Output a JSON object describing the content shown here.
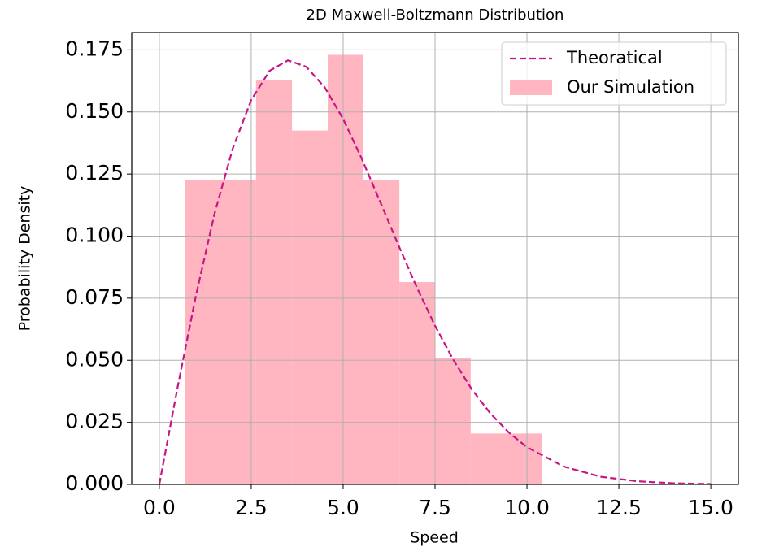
{
  "chart_data": {
    "type": "histogram",
    "title": "2D Maxwell-Boltzmann Distribution",
    "xlabel": "Speed",
    "ylabel": "Probability Density",
    "name": "Our Simulation",
    "color": "#ffb6c1",
    "bins": [
      0.69,
      1.66,
      2.63,
      3.61,
      4.58,
      5.55,
      6.53,
      7.5,
      8.47,
      9.45,
      10.42
    ],
    "values": [
      0.1225,
      0.1225,
      0.163,
      0.1425,
      0.173,
      0.1225,
      0.0815,
      0.051,
      0.0205,
      0.0205
    ],
    "line": {
      "type": "line",
      "name": "Theoratical",
      "color": "#c71585",
      "dashed": true,
      "x": [
        0,
        0.5,
        1,
        1.5,
        2,
        2.5,
        3,
        3.5,
        4,
        4.5,
        5,
        5.5,
        6,
        6.5,
        7,
        7.5,
        8,
        8.5,
        9,
        9.5,
        10,
        11,
        12,
        13,
        14,
        15
      ],
      "values": [
        0,
        0.0393,
        0.0763,
        0.1089,
        0.1354,
        0.1548,
        0.1666,
        0.1708,
        0.1682,
        0.1599,
        0.1472,
        0.1314,
        0.1141,
        0.0965,
        0.0795,
        0.0639,
        0.0501,
        0.0383,
        0.0287,
        0.021,
        0.015,
        0.0072,
        0.0031,
        0.00126,
        0.00047,
        0.00016
      ]
    },
    "xlim": [
      -0.75,
      15.75
    ],
    "ylim": [
      0,
      0.182
    ],
    "xticks": [
      {
        "value": 0,
        "label": "0.0"
      },
      {
        "value": 2.5,
        "label": "2.5"
      },
      {
        "value": 5,
        "label": "5.0"
      },
      {
        "value": 7.5,
        "label": "7.5"
      },
      {
        "value": 10,
        "label": "10.0"
      },
      {
        "value": 12.5,
        "label": "12.5"
      },
      {
        "value": 15,
        "label": "15.0"
      }
    ],
    "yticks": [
      {
        "value": 0,
        "label": "0.000"
      },
      {
        "value": 0.025,
        "label": "0.025"
      },
      {
        "value": 0.05,
        "label": "0.050"
      },
      {
        "value": 0.075,
        "label": "0.075"
      },
      {
        "value": 0.1,
        "label": "0.100"
      },
      {
        "value": 0.125,
        "label": "0.125"
      },
      {
        "value": 0.15,
        "label": "0.150"
      },
      {
        "value": 0.175,
        "label": "0.175"
      }
    ],
    "grid": true,
    "legend": "upper right"
  }
}
